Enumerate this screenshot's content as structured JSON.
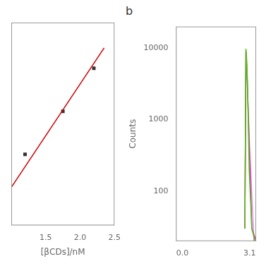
{
  "chart_data": [
    {
      "type": "scatter",
      "xlabel": "[βCDs]/nM",
      "xlim": [
        1.0,
        2.5
      ],
      "ylim": [
        1.1,
        1.9
      ],
      "xticks": [
        1.5,
        {
          "value": 2.0,
          "label": "2.0"
        },
        2.5
      ],
      "tick_labels": "x",
      "grid": false,
      "series": [
        {
          "type": "line",
          "color": "#cc0000",
          "x": [
            1.0,
            2.35
          ],
          "values": [
            1.25,
            1.8
          ]
        },
        {
          "type": "scatter",
          "marker": "square",
          "color": "#333333",
          "x": [
            1.2,
            1.75,
            2.2
          ],
          "values": [
            1.38,
            1.55,
            1.72
          ]
        }
      ]
    },
    {
      "type": "line",
      "ylabel": "Counts",
      "annotations": [
        "b"
      ],
      "log": "y",
      "xlim": [
        -0.3,
        3.4
      ],
      "ylim": [
        20,
        20000
      ],
      "xticks": [
        {
          "value": 0.0,
          "label": "0.0"
        },
        3.1
      ],
      "yticks": [
        100,
        1000,
        10000
      ],
      "grid": false,
      "series": [
        {
          "color": "#44cc00",
          "x": [
            2.88,
            2.93,
            2.93,
            3.0,
            3.08,
            3.2,
            3.35
          ],
          "values": [
            30,
            9800,
            9800,
            3500,
            200,
            30,
            20
          ]
        },
        {
          "color": "#ff00cc",
          "x": [
            2.88,
            2.93,
            2.95,
            3.05,
            3.2,
            3.4
          ],
          "values": [
            30,
            9200,
            8500,
            900,
            30,
            20
          ]
        },
        {
          "color": "#dd88ee",
          "x": [
            2.88,
            2.93,
            2.95,
            3.1,
            3.3,
            3.4
          ],
          "values": [
            30,
            8600,
            7000,
            400,
            20,
            20
          ]
        }
      ]
    }
  ]
}
